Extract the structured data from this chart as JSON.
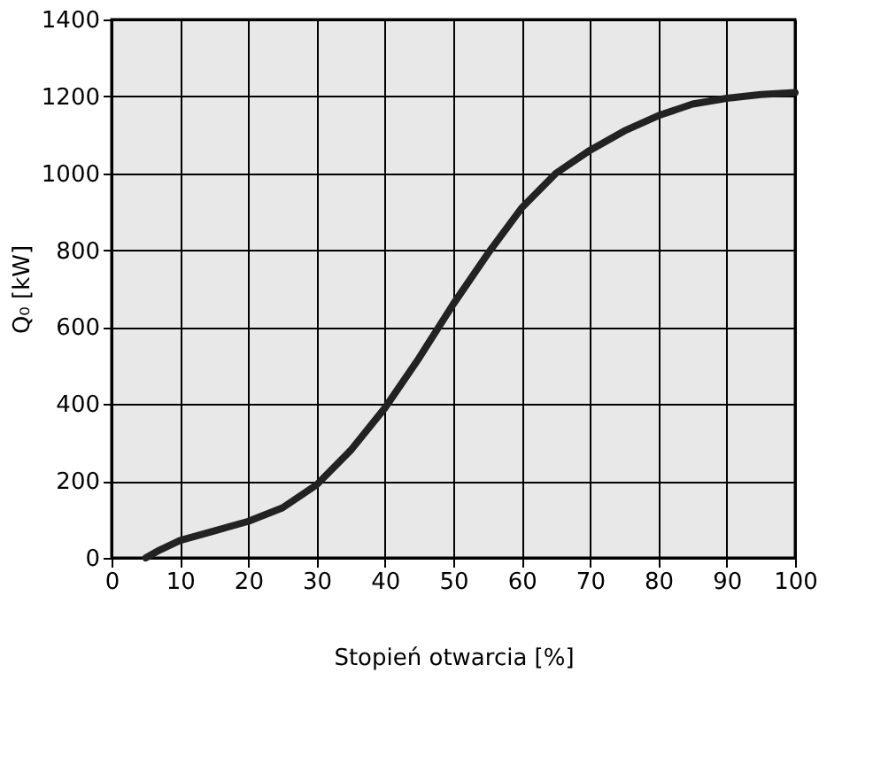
{
  "chart_data": {
    "type": "line",
    "xlabel": "Stopień otwarcia [%]",
    "ylabel": "Q₀ [kW]",
    "x": [
      5,
      7,
      10,
      15,
      20,
      25,
      30,
      35,
      40,
      45,
      50,
      55,
      60,
      65,
      70,
      75,
      80,
      85,
      90,
      95,
      100
    ],
    "series": [
      {
        "color": "#222222",
        "values": [
          0,
          20,
          45,
          70,
          95,
          130,
          190,
          280,
          390,
          520,
          660,
          790,
          910,
          1000,
          1060,
          1110,
          1150,
          1180,
          1195,
          1205,
          1210
        ]
      }
    ],
    "xlim": [
      0,
      100
    ],
    "xticks": [
      0,
      10,
      20,
      30,
      40,
      50,
      60,
      70,
      80,
      90,
      100
    ],
    "ylim": [
      0,
      1400
    ],
    "yticks": [
      0,
      200,
      400,
      600,
      800,
      1000,
      1200,
      1400
    ],
    "grid": true,
    "marker": "none",
    "line_style": "solid"
  }
}
